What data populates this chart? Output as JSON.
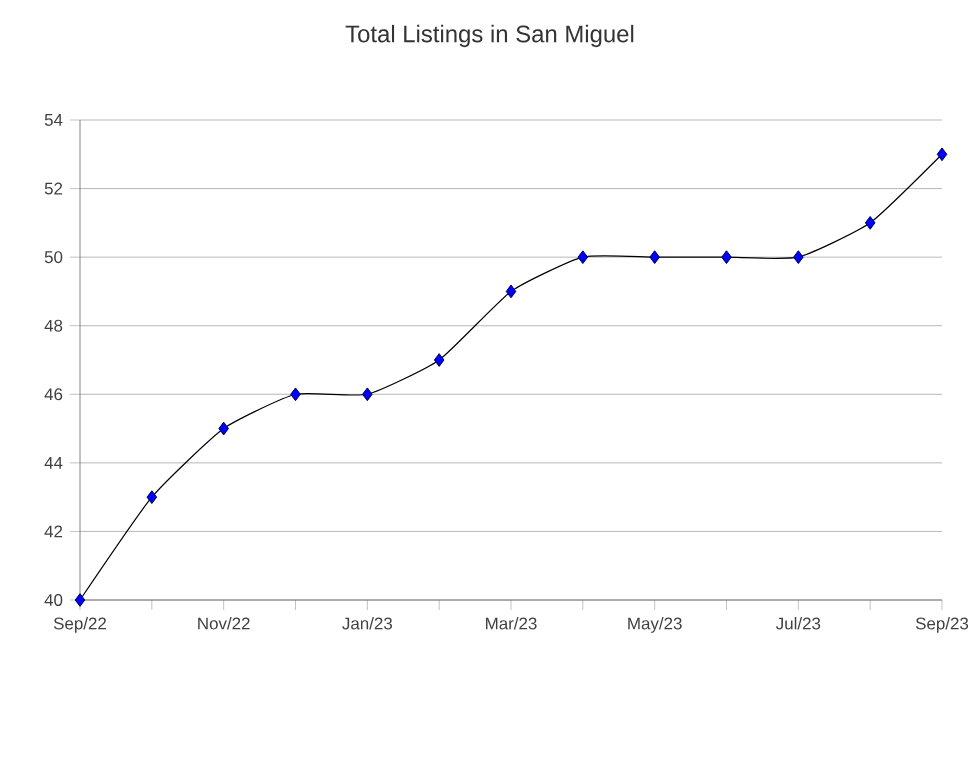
{
  "chart_data": {
    "type": "line",
    "title": "Total Listings in San Miguel",
    "categories": [
      "Sep/22",
      null,
      "Nov/22",
      null,
      "Jan/23",
      null,
      "Mar/23",
      null,
      "May/23",
      null,
      "Jul/23",
      null,
      "Sep/23"
    ],
    "series": [
      {
        "color": "#0000ff",
        "values": [
          40,
          43,
          45,
          46,
          46,
          47,
          49,
          50,
          50,
          50,
          50,
          51,
          53
        ]
      }
    ],
    "ylim": [
      40,
      54
    ],
    "yticks": [
      40,
      42,
      44,
      46,
      48,
      50,
      52,
      54
    ],
    "grid": "y",
    "marker": "diamond",
    "line_style": "solid"
  }
}
